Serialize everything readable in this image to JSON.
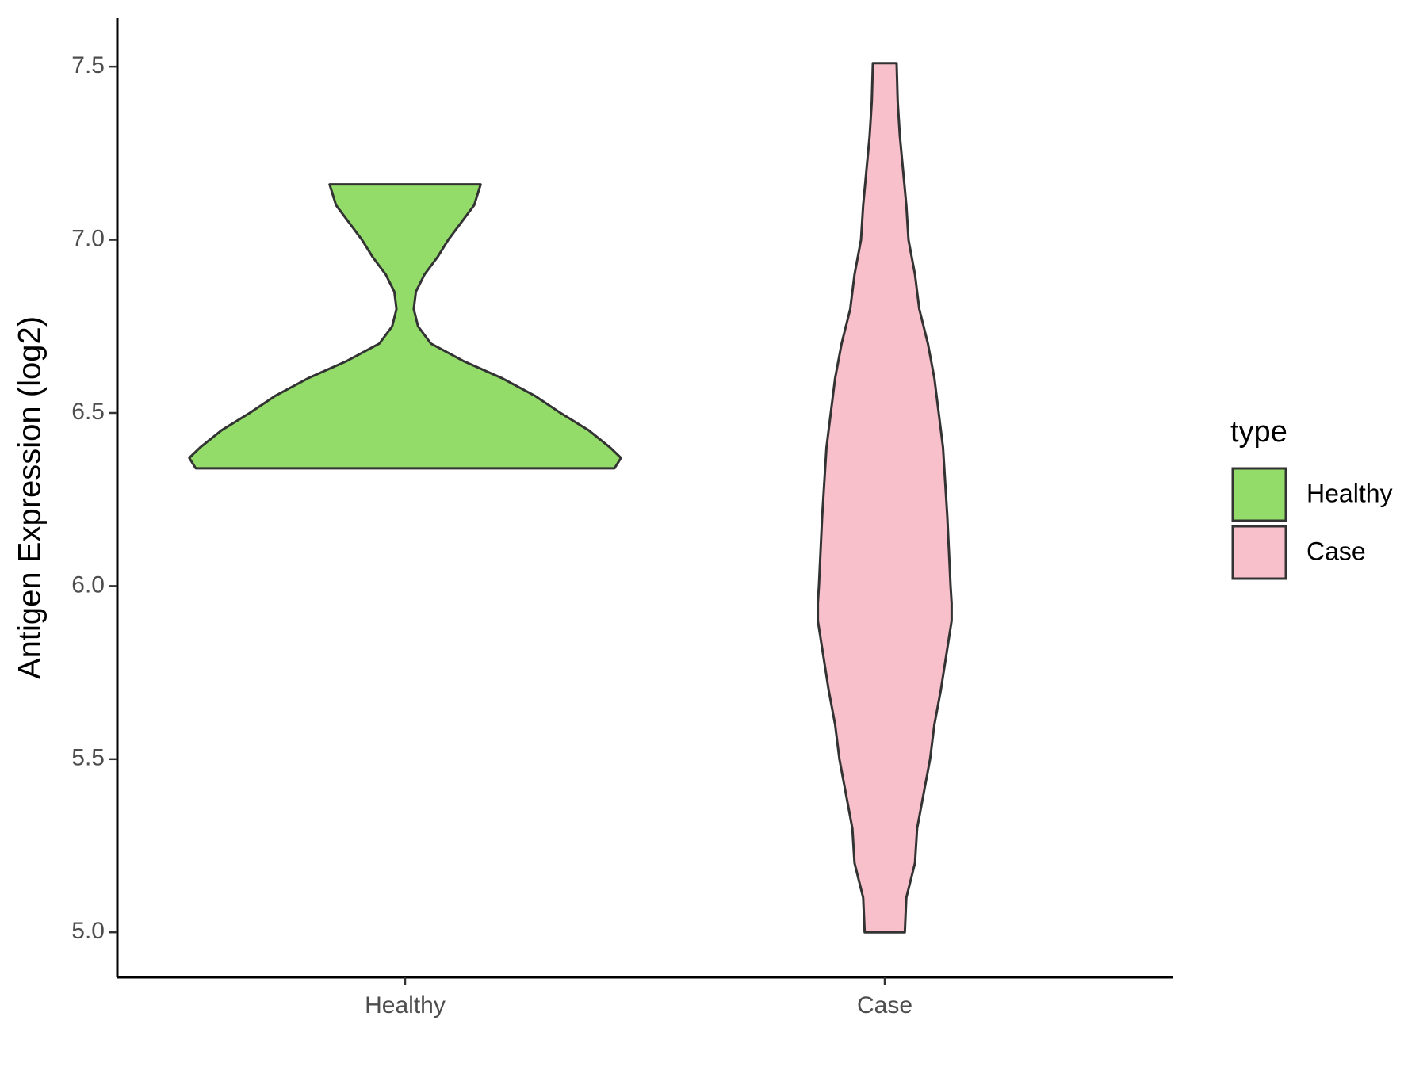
{
  "chart_data": {
    "type": "violin",
    "y_label": "Antigen Expression (log2)",
    "categories": [
      "Healthy",
      "Case"
    ],
    "legend_title": "type",
    "ylim": [
      4.87,
      7.64
    ],
    "yticks": [
      {
        "value": 5,
        "label": "5.0"
      },
      5.5,
      {
        "value": 6,
        "label": "6.0"
      },
      6.5,
      {
        "value": 7,
        "label": "7.0"
      },
      7.5
    ],
    "series": [
      {
        "name": "Healthy",
        "color": "#93dc6a",
        "values": [
          6.34,
          6.37,
          6.4,
          6.45,
          6.5,
          6.55,
          6.6,
          6.65,
          6.7,
          6.75,
          6.8,
          6.85,
          6.9,
          6.95,
          7.0,
          7.05,
          7.1,
          7.16
        ],
        "density": [
          0.97,
          1.0,
          0.95,
          0.85,
          0.72,
          0.6,
          0.45,
          0.27,
          0.12,
          0.06,
          0.04,
          0.05,
          0.09,
          0.15,
          0.2,
          0.26,
          0.32,
          0.35
        ]
      },
      {
        "name": "Case",
        "color": "#f7c0cb",
        "values": [
          5.0,
          5.1,
          5.2,
          5.3,
          5.4,
          5.5,
          5.6,
          5.7,
          5.8,
          5.9,
          5.95,
          6.0,
          6.2,
          6.3,
          6.4,
          6.5,
          6.6,
          6.7,
          6.8,
          6.9,
          7.0,
          7.1,
          7.2,
          7.3,
          7.4,
          7.51
        ],
        "density": [
          0.093,
          0.1,
          0.14,
          0.15,
          0.18,
          0.21,
          0.23,
          0.26,
          0.285,
          0.31,
          0.31,
          0.305,
          0.29,
          0.28,
          0.27,
          0.25,
          0.23,
          0.2,
          0.16,
          0.14,
          0.11,
          0.1,
          0.085,
          0.07,
          0.06,
          0.055
        ]
      }
    ]
  }
}
